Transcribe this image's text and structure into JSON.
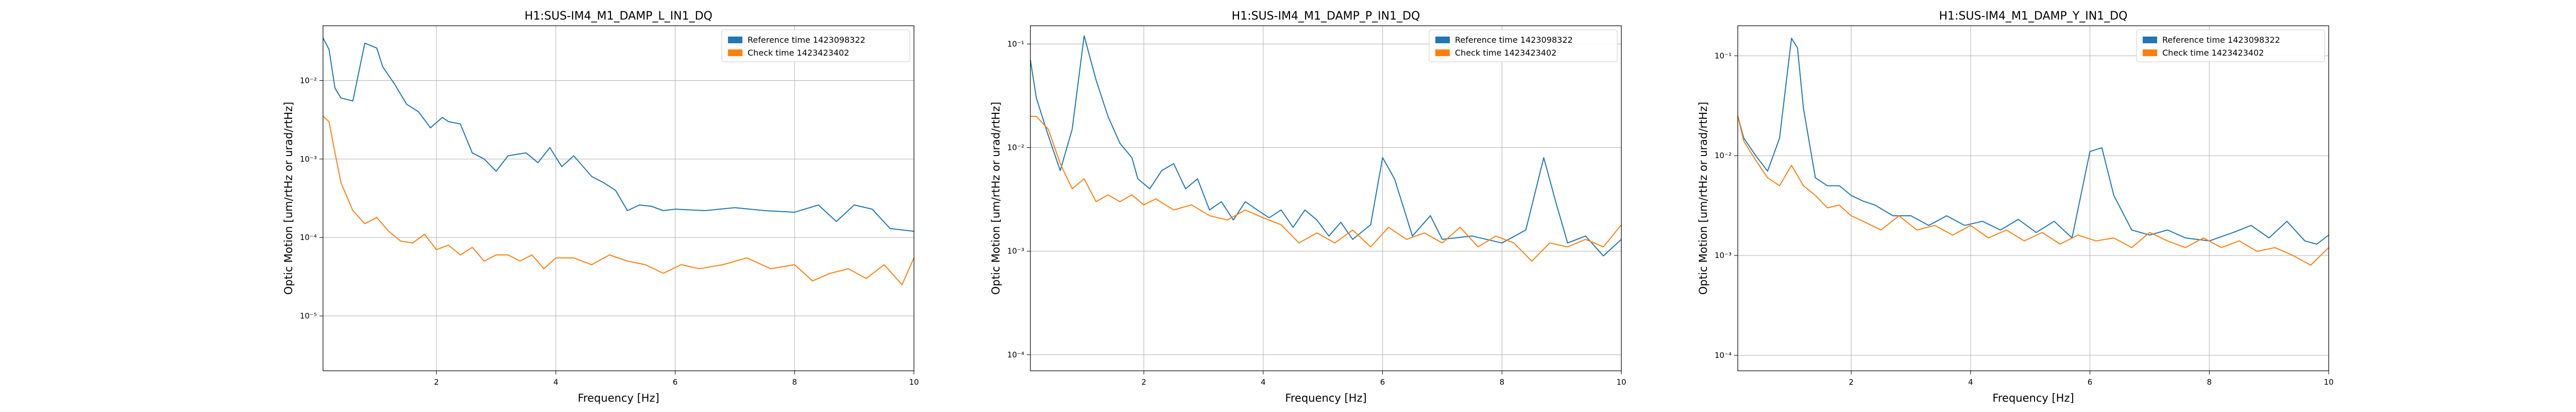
{
  "chart_data": [
    {
      "type": "line",
      "title": "H1:SUS-IM4_M1_DAMP_L_IN1_DQ",
      "xlabel": "Frequency [Hz]",
      "ylabel": "Optic Motion [um/rtHz or urad/rtHz]",
      "xlim": [
        0.1,
        10
      ],
      "ylim": [
        2e-06,
        0.05
      ],
      "yscale": "log",
      "grid": true,
      "legend": "top-right",
      "x_ticks": [
        2,
        4,
        6,
        8,
        10
      ],
      "y_ticks": [
        {
          "v": 1e-05,
          "label": "10⁻⁵"
        },
        {
          "v": 0.0001,
          "label": "10⁻⁴"
        },
        {
          "v": 0.001,
          "label": "10⁻³"
        },
        {
          "v": 0.01,
          "label": "10⁻²"
        }
      ],
      "series": [
        {
          "name": "Reference time 1423098322",
          "color": "#1f77b4",
          "x": [
            0.1,
            0.2,
            0.3,
            0.4,
            0.6,
            0.8,
            1.0,
            1.1,
            1.3,
            1.5,
            1.7,
            1.9,
            2.1,
            2.2,
            2.4,
            2.6,
            2.8,
            3.0,
            3.2,
            3.5,
            3.7,
            3.9,
            4.1,
            4.3,
            4.6,
            4.8,
            5.0,
            5.2,
            5.4,
            5.6,
            5.8,
            6.0,
            6.5,
            7.0,
            7.5,
            8.0,
            8.4,
            8.7,
            9.0,
            9.3,
            9.6,
            10.0
          ],
          "y": [
            0.035,
            0.025,
            0.008,
            0.006,
            0.0055,
            0.03,
            0.026,
            0.015,
            0.009,
            0.005,
            0.004,
            0.0025,
            0.0034,
            0.003,
            0.0028,
            0.0012,
            0.001,
            0.0007,
            0.0011,
            0.0012,
            0.0009,
            0.0014,
            0.0008,
            0.0011,
            0.0006,
            0.0005,
            0.0004,
            0.00022,
            0.00026,
            0.00025,
            0.00022,
            0.00023,
            0.00022,
            0.00024,
            0.00022,
            0.00021,
            0.00026,
            0.00016,
            0.00026,
            0.00023,
            0.00013,
            0.00012
          ]
        },
        {
          "name": "Check time 1423423402",
          "color": "#ff7f0e",
          "x": [
            0.1,
            0.2,
            0.3,
            0.4,
            0.6,
            0.8,
            1.0,
            1.2,
            1.4,
            1.6,
            1.8,
            2.0,
            2.2,
            2.4,
            2.6,
            2.8,
            3.0,
            3.2,
            3.4,
            3.6,
            3.8,
            4.0,
            4.3,
            4.6,
            4.9,
            5.2,
            5.5,
            5.8,
            6.1,
            6.4,
            6.8,
            7.2,
            7.6,
            8.0,
            8.3,
            8.6,
            8.9,
            9.2,
            9.5,
            9.8,
            10.0
          ],
          "y": [
            0.0035,
            0.003,
            0.0012,
            0.0005,
            0.00022,
            0.00015,
            0.00018,
            0.00012,
            9e-05,
            8.5e-05,
            0.00011,
            7e-05,
            8e-05,
            6e-05,
            7.5e-05,
            5e-05,
            6e-05,
            6e-05,
            5e-05,
            6e-05,
            4e-05,
            5.5e-05,
            5.5e-05,
            4.5e-05,
            6e-05,
            5e-05,
            4.5e-05,
            3.5e-05,
            4.5e-05,
            4e-05,
            4.5e-05,
            5.5e-05,
            4e-05,
            4.5e-05,
            2.8e-05,
            3.5e-05,
            4e-05,
            3e-05,
            4.5e-05,
            2.5e-05,
            5.5e-05
          ]
        }
      ]
    },
    {
      "type": "line",
      "title": "H1:SUS-IM4_M1_DAMP_P_IN1_DQ",
      "xlabel": "Frequency [Hz]",
      "ylabel": "Optic Motion [um/rtHz or urad/rtHz]",
      "xlim": [
        0.1,
        10
      ],
      "ylim": [
        7e-05,
        0.15
      ],
      "yscale": "log",
      "grid": true,
      "legend": "top-right",
      "x_ticks": [
        2,
        4,
        6,
        8,
        10
      ],
      "y_ticks": [
        {
          "v": 0.0001,
          "label": "10⁻⁴"
        },
        {
          "v": 0.001,
          "label": "10⁻³"
        },
        {
          "v": 0.01,
          "label": "10⁻²"
        },
        {
          "v": 0.1,
          "label": "10⁻¹"
        }
      ],
      "series": [
        {
          "name": "Reference time 1423098322",
          "color": "#1f77b4",
          "x": [
            0.1,
            0.2,
            0.4,
            0.6,
            0.8,
            1.0,
            1.2,
            1.4,
            1.6,
            1.8,
            1.9,
            2.1,
            2.3,
            2.5,
            2.7,
            2.9,
            3.1,
            3.3,
            3.5,
            3.7,
            3.9,
            4.1,
            4.3,
            4.5,
            4.7,
            4.9,
            5.1,
            5.3,
            5.5,
            5.8,
            6.0,
            6.2,
            6.5,
            6.8,
            7.0,
            7.5,
            8.0,
            8.4,
            8.7,
            8.9,
            9.1,
            9.4,
            9.7,
            10.0
          ],
          "y": [
            0.07,
            0.03,
            0.013,
            0.006,
            0.015,
            0.12,
            0.045,
            0.02,
            0.011,
            0.008,
            0.005,
            0.004,
            0.006,
            0.007,
            0.004,
            0.005,
            0.0025,
            0.003,
            0.002,
            0.003,
            0.0025,
            0.0021,
            0.0025,
            0.0017,
            0.0025,
            0.002,
            0.0014,
            0.0019,
            0.0013,
            0.0018,
            0.008,
            0.005,
            0.0014,
            0.0022,
            0.0013,
            0.0014,
            0.0012,
            0.0016,
            0.008,
            0.003,
            0.0012,
            0.0014,
            0.0009,
            0.0013
          ]
        },
        {
          "name": "Check time 1423423402",
          "color": "#ff7f0e",
          "x": [
            0.1,
            0.2,
            0.4,
            0.6,
            0.8,
            1.0,
            1.2,
            1.4,
            1.6,
            1.8,
            2.0,
            2.2,
            2.5,
            2.8,
            3.1,
            3.4,
            3.7,
            4.0,
            4.3,
            4.6,
            4.9,
            5.2,
            5.5,
            5.8,
            6.1,
            6.4,
            6.7,
            7.0,
            7.3,
            7.6,
            7.9,
            8.2,
            8.5,
            8.8,
            9.1,
            9.4,
            9.7,
            10.0
          ],
          "y": [
            0.02,
            0.02,
            0.015,
            0.007,
            0.004,
            0.005,
            0.003,
            0.0035,
            0.003,
            0.0035,
            0.0028,
            0.0032,
            0.0025,
            0.0028,
            0.0022,
            0.002,
            0.0025,
            0.0021,
            0.0018,
            0.0012,
            0.0015,
            0.0012,
            0.0016,
            0.0011,
            0.0017,
            0.0013,
            0.0015,
            0.0012,
            0.0017,
            0.0011,
            0.0014,
            0.0012,
            0.0008,
            0.0012,
            0.0011,
            0.0013,
            0.0011,
            0.0018
          ]
        }
      ]
    },
    {
      "type": "line",
      "title": "H1:SUS-IM4_M1_DAMP_Y_IN1_DQ",
      "xlabel": "Frequency [Hz]",
      "ylabel": "Optic Motion [um/rtHz or urad/rtHz]",
      "xlim": [
        0.1,
        10
      ],
      "ylim": [
        7e-05,
        0.2
      ],
      "yscale": "log",
      "grid": true,
      "legend": "top-right",
      "x_ticks": [
        2,
        4,
        6,
        8,
        10
      ],
      "y_ticks": [
        {
          "v": 0.0001,
          "label": "10⁻⁴"
        },
        {
          "v": 0.001,
          "label": "10⁻³"
        },
        {
          "v": 0.01,
          "label": "10⁻²"
        },
        {
          "v": 0.1,
          "label": "10⁻¹"
        }
      ],
      "series": [
        {
          "name": "Reference time 1423098322",
          "color": "#1f77b4",
          "x": [
            0.1,
            0.2,
            0.4,
            0.6,
            0.8,
            1.0,
            1.1,
            1.2,
            1.4,
            1.6,
            1.8,
            2.0,
            2.2,
            2.4,
            2.7,
            3.0,
            3.3,
            3.6,
            3.9,
            4.2,
            4.5,
            4.8,
            5.1,
            5.4,
            5.7,
            6.0,
            6.2,
            6.4,
            6.7,
            7.0,
            7.3,
            7.6,
            8.0,
            8.4,
            8.7,
            9.0,
            9.3,
            9.6,
            9.8,
            10.0
          ],
          "y": [
            0.025,
            0.015,
            0.01,
            0.007,
            0.015,
            0.15,
            0.12,
            0.03,
            0.006,
            0.005,
            0.005,
            0.004,
            0.0035,
            0.0032,
            0.0025,
            0.0025,
            0.002,
            0.0025,
            0.002,
            0.0022,
            0.0018,
            0.0023,
            0.0017,
            0.0022,
            0.0015,
            0.011,
            0.012,
            0.004,
            0.0018,
            0.0016,
            0.0018,
            0.0015,
            0.0014,
            0.0017,
            0.002,
            0.0015,
            0.0022,
            0.0014,
            0.0013,
            0.0016
          ]
        },
        {
          "name": "Check time 1423423402",
          "color": "#ff7f0e",
          "x": [
            0.1,
            0.2,
            0.4,
            0.6,
            0.8,
            1.0,
            1.2,
            1.4,
            1.6,
            1.8,
            2.0,
            2.2,
            2.5,
            2.8,
            3.1,
            3.4,
            3.7,
            4.0,
            4.3,
            4.6,
            4.9,
            5.2,
            5.5,
            5.8,
            6.1,
            6.4,
            6.7,
            7.0,
            7.3,
            7.6,
            7.9,
            8.2,
            8.5,
            8.8,
            9.1,
            9.4,
            9.7,
            10.0
          ],
          "y": [
            0.025,
            0.014,
            0.009,
            0.006,
            0.005,
            0.008,
            0.005,
            0.004,
            0.003,
            0.0032,
            0.0025,
            0.0022,
            0.0018,
            0.0025,
            0.0018,
            0.002,
            0.0016,
            0.002,
            0.0015,
            0.0018,
            0.0014,
            0.0017,
            0.0013,
            0.0016,
            0.0014,
            0.0015,
            0.0012,
            0.0017,
            0.0014,
            0.0012,
            0.0015,
            0.0012,
            0.0014,
            0.0011,
            0.0012,
            0.001,
            0.0008,
            0.0012
          ]
        }
      ]
    }
  ]
}
